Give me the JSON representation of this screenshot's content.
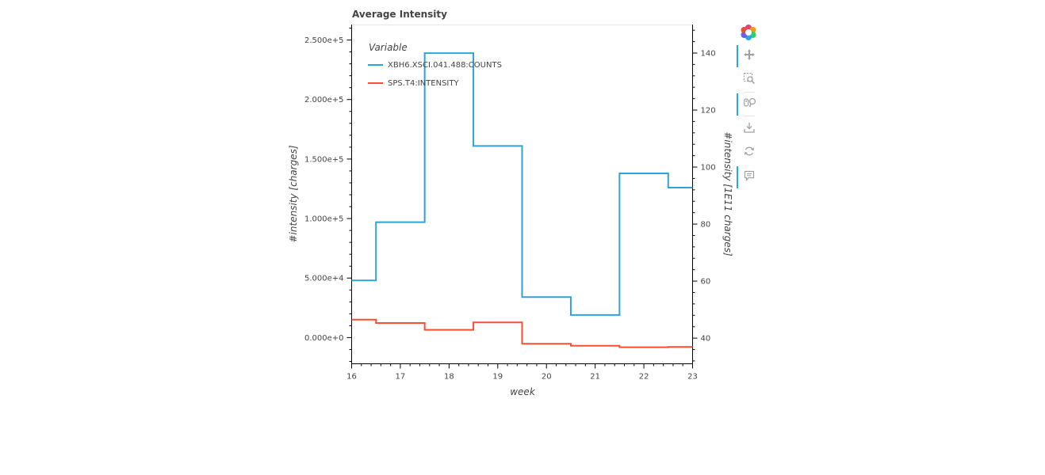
{
  "chart_data": {
    "type": "line",
    "step": "mid",
    "title": "Average Intensity",
    "xlabel": "week",
    "ylabel": "#intensity [charges]",
    "ylabel_right": "#intensity [1E11 charges]",
    "xlim": [
      16,
      23
    ],
    "ylim": [
      -22000,
      263000
    ],
    "ylim_right": [
      31,
      150
    ],
    "x_ticks": [
      "16",
      "17",
      "18",
      "19",
      "20",
      "21",
      "22",
      "23"
    ],
    "y_ticks": [
      "0.000e+0",
      "5.000e+4",
      "1.000e+5",
      "1.500e+5",
      "2.000e+5",
      "2.500e+5"
    ],
    "y_ticks_right": [
      "40",
      "60",
      "80",
      "100",
      "120",
      "140"
    ],
    "legend": {
      "title": "Variable",
      "position": "top-left"
    },
    "x": [
      16,
      17,
      18,
      19,
      20,
      21,
      22,
      23
    ],
    "series": [
      {
        "name": "XBH6.XSCI.041.488:COUNTS",
        "axis": "left",
        "color": "#30a2da",
        "values": [
          48000,
          97000,
          239000,
          161000,
          34000,
          19000,
          138000,
          126000
        ]
      },
      {
        "name": "SPS.T4:INTENSITY",
        "axis": "right",
        "color": "#fc4f30",
        "values": [
          46.5,
          45.3,
          42.9,
          45.5,
          38.0,
          37.3,
          36.8,
          36.9
        ]
      }
    ]
  },
  "toolbar": {
    "tools": [
      {
        "name": "bokeh-logo-icon",
        "active": false
      },
      {
        "name": "pan-icon",
        "active": true
      },
      {
        "name": "box-zoom-icon",
        "active": false
      },
      {
        "name": "wheel-zoom-icon",
        "active": true
      },
      {
        "name": "save-icon",
        "active": false
      },
      {
        "name": "reset-icon",
        "active": false
      },
      {
        "name": "hover-icon",
        "active": true
      }
    ],
    "colors": {
      "active": "#26aae1",
      "icon": "#a0a0a0"
    }
  }
}
